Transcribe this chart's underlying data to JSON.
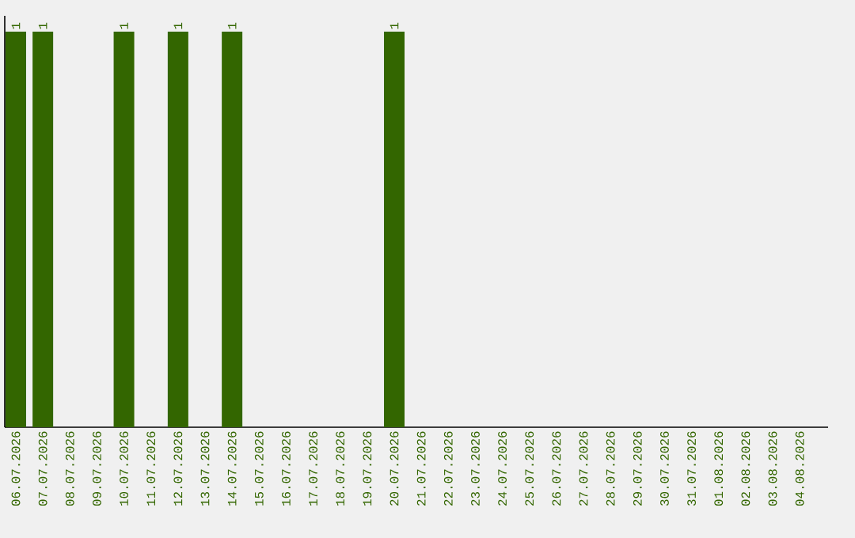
{
  "chart_data": {
    "type": "bar",
    "color": "#336600",
    "categories": [
      "06.07.2026",
      "07.07.2026",
      "08.07.2026",
      "09.07.2026",
      "10.07.2026",
      "11.07.2026",
      "12.07.2026",
      "13.07.2026",
      "14.07.2026",
      "15.07.2026",
      "16.07.2026",
      "17.07.2026",
      "18.07.2026",
      "19.07.2026",
      "20.07.2026",
      "21.07.2026",
      "22.07.2026",
      "23.07.2026",
      "24.07.2026",
      "25.07.2026",
      "26.07.2026",
      "27.07.2026",
      "28.07.2026",
      "29.07.2026",
      "30.07.2026",
      "31.07.2026",
      "01.08.2026",
      "02.08.2026",
      "03.08.2026",
      "04.08.2026"
    ],
    "values": [
      1,
      1,
      0,
      0,
      1,
      0,
      1,
      0,
      1,
      0,
      0,
      0,
      0,
      0,
      1,
      0,
      0,
      0,
      0,
      0,
      0,
      0,
      0,
      0,
      0,
      0,
      0,
      0,
      0,
      0
    ],
    "value_labels": [
      "1",
      "1",
      null,
      null,
      "1",
      null,
      "1",
      null,
      "1",
      null,
      null,
      null,
      null,
      null,
      "1",
      null,
      null,
      null,
      null,
      null,
      null,
      null,
      null,
      null,
      null,
      null,
      null,
      null,
      null,
      null
    ]
  }
}
